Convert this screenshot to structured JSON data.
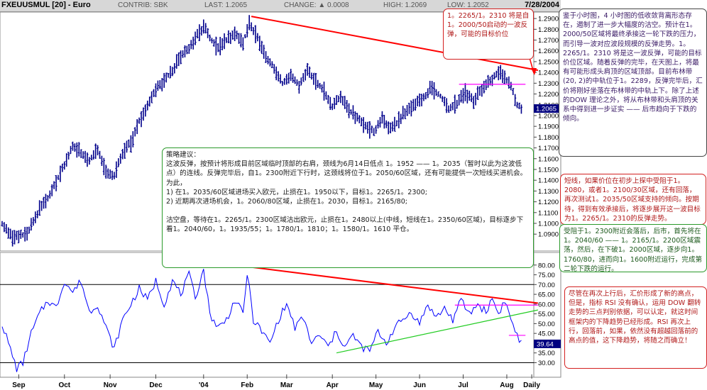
{
  "header": {
    "symbol": "FXEUUSMUL [20] - Euro",
    "contrib": "CONTRIB: SBK",
    "last": "LAST: 1.2065",
    "change": "CHANGE: ▲ 0.0008",
    "high": "HIGH: 1.2069",
    "low": "LOW: 1.2052",
    "date": "7/28/2004"
  },
  "colors": {
    "price_bars": "#00008b",
    "trendline_resistance": "#ff0000",
    "trendline_support": "#22cc22",
    "neckline": "#ff00ff",
    "rsi_line": "#0000ff",
    "last_value_box": "#000080"
  },
  "chart_data": [
    {
      "type": "bar",
      "subtype": "ohlc",
      "title": "FXEUUSMUL [20] - Euro",
      "ylim": [
        1.075,
        1.296
      ],
      "y_ticks": [
        1.09,
        1.1,
        1.11,
        1.12,
        1.13,
        1.14,
        1.15,
        1.16,
        1.17,
        1.18,
        1.19,
        1.2,
        1.21,
        1.22,
        1.23,
        1.24,
        1.25,
        1.26,
        1.27,
        1.28,
        1.29
      ],
      "y_tick_labels": [
        "1.0900",
        "1.1000",
        "1.1100",
        "1.1200",
        "1.1300",
        "1.1400",
        "1.1500",
        "1.1600",
        "1.1700",
        "1.1800",
        "1.1900",
        "1.2000",
        "1.2100",
        "1.2200",
        "1.2300",
        "1.2400",
        "1.2500",
        "1.2600",
        "1.2700",
        "1.2800",
        "1.2900"
      ],
      "x_labels": [
        "Sep",
        "Oct",
        "Nov",
        "Dec",
        "'04",
        "Feb",
        "Mar",
        "Apr",
        "May",
        "Jun",
        "Jul",
        "Aug",
        "Daily"
      ],
      "last_value": 1.2065,
      "last_value_label": "1.2065",
      "series_path": [
        {
          "t": 0,
          "v": 1.1
        },
        {
          "t": 5,
          "v": 1.087
        },
        {
          "t": 12,
          "v": 1.09
        },
        {
          "t": 18,
          "v": 1.112
        },
        {
          "t": 24,
          "v": 1.13
        },
        {
          "t": 30,
          "v": 1.155
        },
        {
          "t": 34,
          "v": 1.172
        },
        {
          "t": 38,
          "v": 1.165
        },
        {
          "t": 42,
          "v": 1.158
        },
        {
          "t": 46,
          "v": 1.168
        },
        {
          "t": 50,
          "v": 1.147
        },
        {
          "t": 54,
          "v": 1.145
        },
        {
          "t": 58,
          "v": 1.165
        },
        {
          "t": 62,
          "v": 1.175
        },
        {
          "t": 66,
          "v": 1.195
        },
        {
          "t": 70,
          "v": 1.208
        },
        {
          "t": 74,
          "v": 1.225
        },
        {
          "t": 78,
          "v": 1.232
        },
        {
          "t": 82,
          "v": 1.242
        },
        {
          "t": 86,
          "v": 1.255
        },
        {
          "t": 90,
          "v": 1.262
        },
        {
          "t": 94,
          "v": 1.275
        },
        {
          "t": 97,
          "v": 1.283
        },
        {
          "t": 100,
          "v": 1.272
        },
        {
          "t": 104,
          "v": 1.262
        },
        {
          "t": 108,
          "v": 1.27
        },
        {
          "t": 112,
          "v": 1.276
        },
        {
          "t": 116,
          "v": 1.268
        },
        {
          "t": 119,
          "v": 1.285
        },
        {
          "t": 123,
          "v": 1.272
        },
        {
          "t": 127,
          "v": 1.255
        },
        {
          "t": 131,
          "v": 1.245
        },
        {
          "t": 135,
          "v": 1.23
        },
        {
          "t": 139,
          "v": 1.238
        },
        {
          "t": 143,
          "v": 1.228
        },
        {
          "t": 147,
          "v": 1.243
        },
        {
          "t": 151,
          "v": 1.232
        },
        {
          "t": 155,
          "v": 1.222
        },
        {
          "t": 159,
          "v": 1.208
        },
        {
          "t": 163,
          "v": 1.218
        },
        {
          "t": 167,
          "v": 1.205
        },
        {
          "t": 171,
          "v": 1.198
        },
        {
          "t": 175,
          "v": 1.19
        },
        {
          "t": 179,
          "v": 1.185
        },
        {
          "t": 183,
          "v": 1.196
        },
        {
          "t": 187,
          "v": 1.188
        },
        {
          "t": 191,
          "v": 1.196
        },
        {
          "t": 195,
          "v": 1.205
        },
        {
          "t": 199,
          "v": 1.21
        },
        {
          "t": 203,
          "v": 1.217
        },
        {
          "t": 207,
          "v": 1.226
        },
        {
          "t": 211,
          "v": 1.218
        },
        {
          "t": 215,
          "v": 1.206
        },
        {
          "t": 219,
          "v": 1.211
        },
        {
          "t": 223,
          "v": 1.222
        },
        {
          "t": 227,
          "v": 1.213
        },
        {
          "t": 231,
          "v": 1.225
        },
        {
          "t": 235,
          "v": 1.232
        },
        {
          "t": 239,
          "v": 1.24
        },
        {
          "t": 242,
          "v": 1.235
        },
        {
          "t": 245,
          "v": 1.227
        },
        {
          "t": 248,
          "v": 1.21
        },
        {
          "t": 250,
          "v": 1.2065
        }
      ],
      "lines": [
        {
          "name": "resistance",
          "t1": 120,
          "v1": 1.292,
          "t2": 258,
          "v2": 1.242
        },
        {
          "name": "neckline",
          "t1": 220,
          "v1": 1.229,
          "t2": 252,
          "v2": 1.229
        }
      ],
      "x_tick_positions_t": [
        8,
        30,
        52,
        74,
        97,
        118,
        137,
        159,
        180,
        201,
        222,
        243,
        255
      ]
    },
    {
      "type": "line",
      "name": "RSI",
      "ylim": [
        24,
        85
      ],
      "y_ticks": [
        30,
        35,
        40,
        45,
        50,
        55,
        60,
        65,
        70,
        75,
        80
      ],
      "y_tick_labels": [
        "30.00",
        "35.00",
        "40.00",
        "45.00",
        "50.00",
        "55.00",
        "60.00",
        "65.00",
        "70.00",
        "75.00",
        "80.00"
      ],
      "reference_lines": [
        30,
        70
      ],
      "last_value": 39.64,
      "last_value_label": "39.64",
      "series_path": [
        {
          "t": 0,
          "v": 50
        },
        {
          "t": 3,
          "v": 40
        },
        {
          "t": 7,
          "v": 27
        },
        {
          "t": 10,
          "v": 30
        },
        {
          "t": 14,
          "v": 45
        },
        {
          "t": 18,
          "v": 55
        },
        {
          "t": 22,
          "v": 62
        },
        {
          "t": 26,
          "v": 58
        },
        {
          "t": 30,
          "v": 72
        },
        {
          "t": 34,
          "v": 66
        },
        {
          "t": 38,
          "v": 72
        },
        {
          "t": 42,
          "v": 56
        },
        {
          "t": 46,
          "v": 60
        },
        {
          "t": 50,
          "v": 48
        },
        {
          "t": 54,
          "v": 37
        },
        {
          "t": 58,
          "v": 52
        },
        {
          "t": 62,
          "v": 60
        },
        {
          "t": 66,
          "v": 68
        },
        {
          "t": 70,
          "v": 62
        },
        {
          "t": 74,
          "v": 72
        },
        {
          "t": 78,
          "v": 60
        },
        {
          "t": 82,
          "v": 72
        },
        {
          "t": 86,
          "v": 65
        },
        {
          "t": 90,
          "v": 75
        },
        {
          "t": 93,
          "v": 63
        },
        {
          "t": 97,
          "v": 78
        },
        {
          "t": 100,
          "v": 55
        },
        {
          "t": 104,
          "v": 48
        },
        {
          "t": 108,
          "v": 52
        },
        {
          "t": 112,
          "v": 62
        },
        {
          "t": 116,
          "v": 55
        },
        {
          "t": 118,
          "v": 76
        },
        {
          "t": 121,
          "v": 52
        },
        {
          "t": 125,
          "v": 46
        },
        {
          "t": 129,
          "v": 40
        },
        {
          "t": 133,
          "v": 52
        },
        {
          "t": 137,
          "v": 60
        },
        {
          "t": 141,
          "v": 48
        },
        {
          "t": 145,
          "v": 53
        },
        {
          "t": 149,
          "v": 40
        },
        {
          "t": 153,
          "v": 44
        },
        {
          "t": 157,
          "v": 38
        },
        {
          "t": 161,
          "v": 46
        },
        {
          "t": 165,
          "v": 38
        },
        {
          "t": 169,
          "v": 44
        },
        {
          "t": 173,
          "v": 38
        },
        {
          "t": 177,
          "v": 36
        },
        {
          "t": 181,
          "v": 46
        },
        {
          "t": 185,
          "v": 40
        },
        {
          "t": 189,
          "v": 48
        },
        {
          "t": 193,
          "v": 52
        },
        {
          "t": 197,
          "v": 56
        },
        {
          "t": 201,
          "v": 50
        },
        {
          "t": 205,
          "v": 60
        },
        {
          "t": 209,
          "v": 53
        },
        {
          "t": 213,
          "v": 58
        },
        {
          "t": 217,
          "v": 52
        },
        {
          "t": 221,
          "v": 62
        },
        {
          "t": 225,
          "v": 55
        },
        {
          "t": 229,
          "v": 60
        },
        {
          "t": 233,
          "v": 56
        },
        {
          "t": 236,
          "v": 63
        },
        {
          "t": 239,
          "v": 55
        },
        {
          "t": 242,
          "v": 62
        },
        {
          "t": 245,
          "v": 52
        },
        {
          "t": 248,
          "v": 44
        },
        {
          "t": 250,
          "v": 39.64
        }
      ],
      "lines": [
        {
          "name": "resistance",
          "t1": 97,
          "v1": 82,
          "t2": 258,
          "v2": 60.5
        },
        {
          "name": "support",
          "t1": 161,
          "v1": 35,
          "t2": 258,
          "v2": 57
        },
        {
          "name": "neckline",
          "t1": 218,
          "v1": 59.5,
          "t2": 258,
          "v2": 59.5
        },
        {
          "name": "neckline",
          "t1": 244,
          "v1": 44,
          "t2": 252,
          "v2": 44
        }
      ]
    }
  ],
  "notes": {
    "target": [
      "1。2265/1。2310 将是自1。2000/50启动的一波反弹，可能的目标价位"
    ],
    "right_1": [
      "鉴于小时图，4 小时图的低收敛背离形态存在，遏制了进一步大幅度的沽空。预计在1。2000/50区域将最终承接这一轮下跌的压力，而引导一波对应波段规模的反弹走势。1。2265/1。2310 将是这一波反弹，可能的目标价位区域。随着反弹的完毕，在天图上，将最有可能形成头肩顶的区域顶部。目前布林带(20, 2)的中轨位于1。2289，反弹完毕后，汇价将刚好坐落在布林带的中轨上下。除了上述的DOW 理论之外，将从布林带和头肩顶的关系中得到进一步证实 —— 后市趋向于下跌的倾向。"
    ],
    "right_2": [
      "短线，如果价位在初步上探中受阻于1。2080，或者1。2100/30区域，还有回落，再次测试1。2035/50区域支持的倾向。按期待，得到有效承接后，将逐步展开这一波目标为1。2265/1。2310的反弹走势。"
    ],
    "right_3": [
      "受阻于1。2300附近会落后，后市，首先将在1。2040/60 —— 1。2165/1。2200区域震荡，然后，在下破1。2000区域，逐步向1。1760/80，进而向1。1600附近运行，完成第二轮下跌的运行。"
    ],
    "strategy": [
      "策略建议：",
      "这波反弹，按预计将形成目前区域临时顶部的右肩，颈线为6月14日低点 1。1952 —— 1。2035（暂时以此为这波低点）的连线。反弹完毕后，自1。2300附近下行时，这颈线将位于1。2050/60区域，还有可能提供一次短线买进机会。为此，",
      "1)  在1。2035/60区域进场买入欧元，止损在1。1950以下，目标1。2265/1。2300;",
      "2)  近期再次进场机会，1。2060/80区域，止损在1。2030，目标1。2165/80;",
      "",
      "沽空盘，等待在1。2265/1。2300区域沽出欧元，止损在1。2480以上(中线，短线在1。2350/60区域)，目标逐步下看1。2040/60，1。1935/55；1。1780/1。1810；1。1580/1。1610 平仓。"
    ],
    "rsi": [
      "尽管在再次上行后，汇价形成了新的高点，但是，指标 RSI 没有确认，运用 DOW 翻转走势的三点判别依据，可以认定，就这时间框架内的下降趋势已经形成。RSI 再次上行，回落前，如果，依然没有超越回落前的高点的值，这下降趋势，将随之而确立！"
    ]
  }
}
